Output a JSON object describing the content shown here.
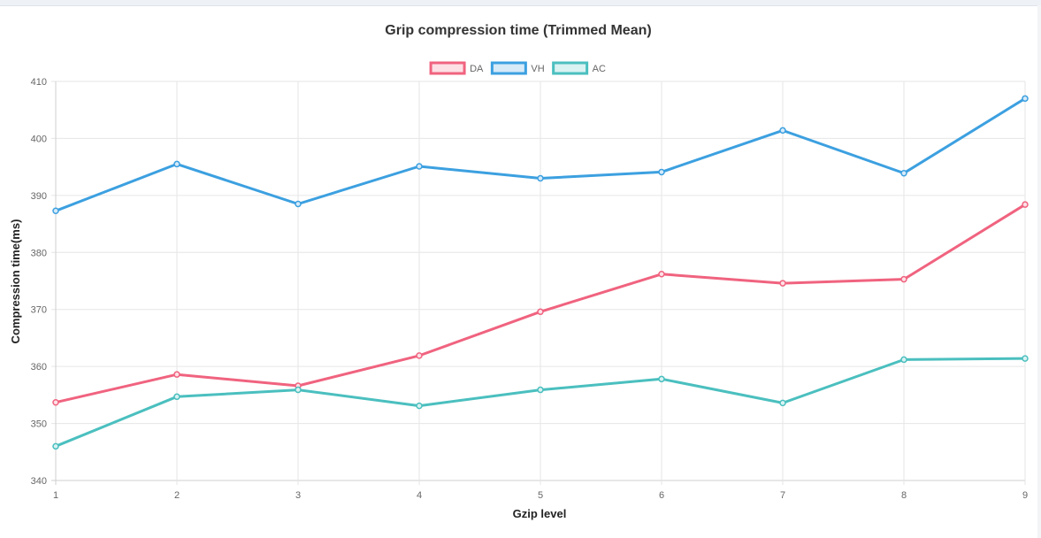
{
  "chart_data": {
    "type": "line",
    "title": "Grip compression time (Trimmed Mean)",
    "xlabel": "Gzip level",
    "ylabel": "Compression time(ms)",
    "x": [
      1,
      2,
      3,
      4,
      5,
      6,
      7,
      8,
      9
    ],
    "ylim": [
      340,
      410
    ],
    "yticks": [
      340,
      350,
      360,
      370,
      380,
      390,
      400,
      410
    ],
    "grid": true,
    "legend_position": "top",
    "series": [
      {
        "name": "DA",
        "color": "#f0637f",
        "fill": "#fde0e6",
        "values": [
          353.7,
          358.6,
          356.6,
          361.9,
          369.6,
          376.2,
          374.6,
          375.3,
          388.4
        ]
      },
      {
        "name": "VH",
        "color": "#3ca0e0",
        "fill": "#d6eaf8",
        "values": [
          387.3,
          395.5,
          388.5,
          395.1,
          393.0,
          394.1,
          401.4,
          393.9,
          407.0
        ]
      },
      {
        "name": "AC",
        "color": "#4bbfbf",
        "fill": "#d9f2f2",
        "values": [
          346.0,
          354.7,
          355.9,
          353.1,
          355.9,
          357.8,
          353.6,
          361.2,
          361.4
        ]
      }
    ]
  }
}
